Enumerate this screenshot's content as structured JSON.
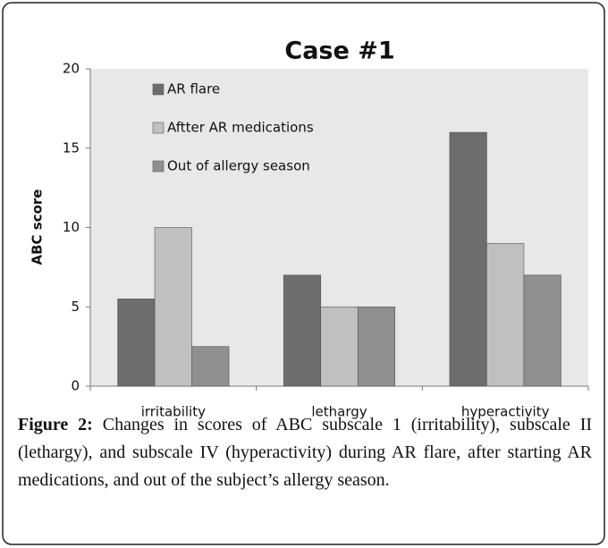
{
  "chart_data": {
    "type": "bar",
    "title": "Case #1",
    "y_label": "ABC score",
    "categories": [
      "irritability",
      "lethargy",
      "hyperactivity"
    ],
    "series": [
      {
        "name": "AR flare",
        "color": "#6d6d6d",
        "values": [
          5.5,
          7,
          16
        ]
      },
      {
        "name": "Aftter AR medications",
        "color": "#c0c0c0",
        "values": [
          10,
          5,
          9
        ]
      },
      {
        "name": "Out of allergy season",
        "color": "#8f8f8f",
        "values": [
          2.5,
          5,
          7
        ]
      }
    ],
    "ylim": [
      0,
      20
    ],
    "yticks": [
      0,
      5,
      10,
      15,
      20
    ],
    "legend": "upper left",
    "background": "#e8e8e8"
  },
  "caption": {
    "label": "Figure 2:",
    "text": "Changes in scores of ABC subscale 1 (irritability), subscale II (lethargy), and subscale IV (hyperactivity) during AR flare, after starting AR medications, and out of the subject’s allergy season."
  }
}
